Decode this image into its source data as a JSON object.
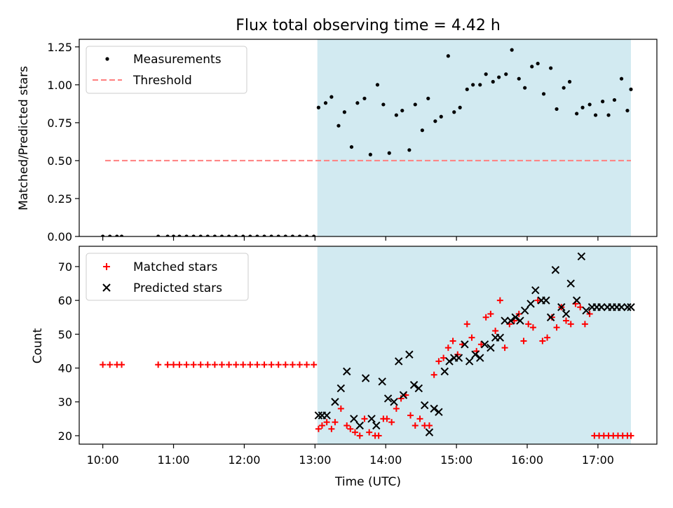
{
  "title": "Flux total observing time = 4.42 h",
  "xlabel": "Time (UTC)",
  "x_tick_labels": [
    "10:00",
    "11:00",
    "12:00",
    "13:00",
    "14:00",
    "15:00",
    "16:00",
    "17:00"
  ],
  "colors": {
    "shade": "#add8e6",
    "measurement": "#000000",
    "threshold": "#ff7f7f",
    "matched": "#ff0000",
    "predicted": "#000000"
  },
  "chart_data": [
    {
      "type": "scatter",
      "ylabel": "Matched/Predicted stars",
      "xlim": [
        "09:40",
        "17:50"
      ],
      "ylim": [
        0,
        1.3
      ],
      "y_ticks": [
        "0.00",
        "0.25",
        "0.50",
        "0.75",
        "1.00",
        "1.25"
      ],
      "shaded_region": [
        "13:02",
        "17:28"
      ],
      "legend": {
        "placement": "upper left",
        "measurements": "Measurements",
        "threshold": "Threshold"
      },
      "threshold": {
        "value": 0.5,
        "x": [
          "10:02",
          "17:28"
        ]
      },
      "measurements": {
        "x": [
          "10:00",
          "10:06",
          "10:12",
          "10:16",
          "10:47",
          "10:55",
          "11:00",
          "11:05",
          "11:11",
          "11:17",
          "11:23",
          "11:29",
          "11:35",
          "11:41",
          "11:47",
          "11:53",
          "11:59",
          "12:05",
          "12:11",
          "12:17",
          "12:23",
          "12:29",
          "12:35",
          "12:41",
          "12:47",
          "12:53",
          "12:59",
          "13:03",
          "13:09",
          "13:14",
          "13:20",
          "13:25",
          "13:31",
          "13:36",
          "13:42",
          "13:47",
          "13:53",
          "13:58",
          "14:03",
          "14:09",
          "14:14",
          "14:20",
          "14:25",
          "14:31",
          "14:36",
          "14:42",
          "14:47",
          "14:53",
          "14:58",
          "15:03",
          "15:09",
          "15:14",
          "15:20",
          "15:25",
          "15:31",
          "15:36",
          "15:42",
          "15:47",
          "15:53",
          "15:58",
          "16:04",
          "16:09",
          "16:14",
          "16:20",
          "16:25",
          "16:31",
          "16:36",
          "16:42",
          "16:47",
          "16:53",
          "16:58",
          "17:04",
          "17:09",
          "17:14",
          "17:20",
          "17:25",
          "17:28"
        ],
        "y": [
          0,
          0,
          0,
          0,
          0,
          0,
          0,
          0,
          0,
          0,
          0,
          0,
          0,
          0,
          0,
          0,
          0,
          0,
          0,
          0,
          0,
          0,
          0,
          0,
          0,
          0,
          0,
          0.85,
          0.88,
          0.92,
          0.73,
          0.82,
          0.59,
          0.88,
          0.91,
          0.54,
          1.0,
          0.87,
          0.55,
          0.8,
          0.83,
          0.57,
          0.87,
          0.7,
          0.91,
          0.76,
          0.79,
          1.19,
          0.82,
          0.85,
          0.97,
          1.0,
          1.0,
          1.07,
          1.02,
          1.05,
          1.07,
          1.23,
          1.04,
          0.98,
          1.12,
          1.14,
          0.94,
          1.11,
          0.84,
          0.98,
          1.02,
          0.81,
          0.85,
          0.87,
          0.8,
          0.89,
          0.8,
          0.9,
          1.04,
          0.83,
          0.97
        ]
      }
    },
    {
      "type": "scatter",
      "ylabel": "Count",
      "xlim": [
        "09:40",
        "17:50"
      ],
      "ylim": [
        17.5,
        76
      ],
      "y_ticks": [
        "20",
        "30",
        "40",
        "50",
        "60",
        "70"
      ],
      "shaded_region": [
        "13:02",
        "17:28"
      ],
      "legend": {
        "placement": "upper left",
        "matched": "Matched stars",
        "predicted": "Predicted stars"
      },
      "matched": {
        "x": [
          "10:00",
          "10:06",
          "10:12",
          "10:16",
          "10:47",
          "10:55",
          "11:00",
          "11:05",
          "11:11",
          "11:17",
          "11:23",
          "11:29",
          "11:35",
          "11:41",
          "11:47",
          "11:53",
          "11:59",
          "12:05",
          "12:11",
          "12:17",
          "12:23",
          "12:29",
          "12:35",
          "12:41",
          "12:47",
          "12:53",
          "12:59",
          "13:03",
          "13:06",
          "13:10",
          "13:14",
          "13:17",
          "13:22",
          "13:27",
          "13:30",
          "13:34",
          "13:38",
          "13:42",
          "13:46",
          "13:51",
          "13:54",
          "13:58",
          "14:01",
          "14:05",
          "14:09",
          "14:13",
          "14:17",
          "14:21",
          "14:25",
          "14:29",
          "14:33",
          "14:37",
          "14:41",
          "14:45",
          "14:49",
          "14:53",
          "14:57",
          "15:01",
          "15:05",
          "15:09",
          "15:13",
          "15:17",
          "15:21",
          "15:25",
          "15:29",
          "15:33",
          "15:37",
          "15:41",
          "15:45",
          "15:49",
          "15:53",
          "15:57",
          "16:01",
          "16:05",
          "16:09",
          "16:13",
          "16:17",
          "16:21",
          "16:25",
          "16:29",
          "16:33",
          "16:37",
          "16:41",
          "16:45",
          "16:49",
          "16:53",
          "16:57",
          "17:01",
          "17:05",
          "17:09",
          "17:13",
          "17:17",
          "17:21",
          "17:25",
          "17:28"
        ],
        "y": [
          41,
          41,
          41,
          41,
          41,
          41,
          41,
          41,
          41,
          41,
          41,
          41,
          41,
          41,
          41,
          41,
          41,
          41,
          41,
          41,
          41,
          41,
          41,
          41,
          41,
          41,
          41,
          22,
          23,
          24,
          22,
          24,
          28,
          23,
          22,
          21,
          20,
          25,
          21,
          20,
          20,
          25,
          25,
          24,
          28,
          31,
          32,
          26,
          23,
          25,
          23,
          23,
          38,
          42,
          43,
          46,
          48,
          44,
          47,
          53,
          49,
          45,
          47,
          55,
          56,
          51,
          60,
          46,
          53,
          54,
          56,
          48,
          53,
          52,
          60,
          48,
          49,
          55,
          52,
          58,
          54,
          53,
          59,
          58,
          53,
          56,
          20,
          20,
          20,
          20,
          20,
          20,
          20,
          20,
          20
        ],
        "y_note_removed": null
      },
      "predicted": {
        "x": [
          "13:03",
          "13:06",
          "13:10",
          "13:17",
          "13:22",
          "13:27",
          "13:33",
          "13:38",
          "13:43",
          "13:48",
          "13:52",
          "13:57",
          "14:02",
          "14:07",
          "14:11",
          "14:15",
          "14:20",
          "14:24",
          "14:28",
          "14:33",
          "14:37",
          "14:41",
          "14:45",
          "14:50",
          "14:54",
          "14:58",
          "15:02",
          "15:07",
          "15:11",
          "15:16",
          "15:20",
          "15:24",
          "15:29",
          "15:33",
          "15:37",
          "15:41",
          "15:46",
          "15:50",
          "15:54",
          "15:58",
          "16:03",
          "16:07",
          "16:12",
          "16:16",
          "16:20",
          "16:24",
          "16:29",
          "16:33",
          "16:37",
          "16:42",
          "16:46",
          "16:50",
          "16:55",
          "16:59",
          "17:03",
          "17:08",
          "17:12",
          "17:16",
          "17:20",
          "17:25",
          "17:28"
        ],
        "y": [
          26,
          26,
          26,
          30,
          34,
          39,
          25,
          23,
          37,
          25,
          23,
          36,
          31,
          30,
          42,
          32,
          44,
          35,
          34,
          29,
          21,
          28,
          27,
          39,
          42,
          43,
          43,
          47,
          42,
          44,
          43,
          47,
          46,
          49,
          49,
          54,
          54,
          55,
          54,
          57,
          59,
          63,
          60,
          60,
          55,
          69,
          58,
          56,
          65,
          60,
          73,
          57,
          58,
          58,
          58,
          58,
          58,
          58,
          58,
          58,
          58
        ]
      }
    }
  ]
}
